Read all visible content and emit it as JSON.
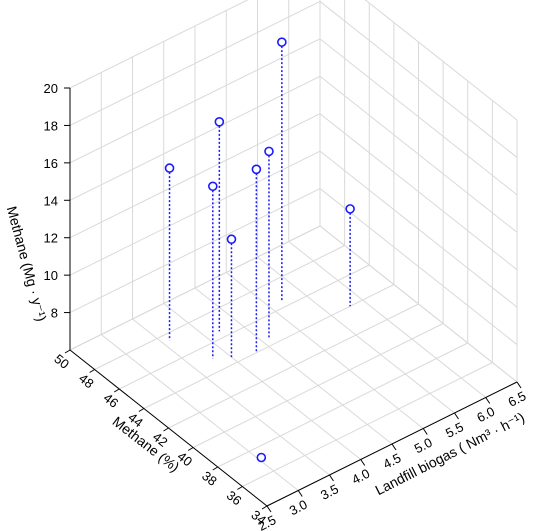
{
  "chart_data": {
    "type": "scatter",
    "subtype": "3d-scatter-with-drop-lines",
    "title": "",
    "xlabel": "Landfill biogas (  Nm³ · h⁻¹)",
    "ylabel": "Methane (%)",
    "zlabel": "Methane  (Mg · y⁻¹)",
    "xlim": [
      2.5,
      6.5
    ],
    "ylim": [
      34,
      50
    ],
    "zlim": [
      6,
      20
    ],
    "x_ticks": [
      "2.5",
      "3.0",
      "3.5",
      "4.0",
      "4.5",
      "5.0",
      "5.5",
      "6.0",
      "6.5"
    ],
    "y_ticks": [
      "34",
      "36",
      "38",
      "40",
      "42",
      "44",
      "46",
      "48",
      "50"
    ],
    "z_ticks": [
      "8",
      "10",
      "12",
      "14",
      "16",
      "18",
      "20"
    ],
    "grid": true,
    "marker_color": "#1a1aff",
    "points": [
      {
        "x": 3.0,
        "y": 37.0,
        "z": 6.2
      },
      {
        "x": 5.8,
        "y": 44.0,
        "z": 11.2
      },
      {
        "x": 3.6,
        "y": 47.5,
        "z": 15.2
      },
      {
        "x": 3.8,
        "y": 45.0,
        "z": 15.2
      },
      {
        "x": 4.0,
        "y": 44.5,
        "z": 12.3
      },
      {
        "x": 4.2,
        "y": 46.5,
        "z": 17.2
      },
      {
        "x": 4.3,
        "y": 44.0,
        "z": 15.8
      },
      {
        "x": 4.6,
        "y": 44.5,
        "z": 16.0
      },
      {
        "x": 5.2,
        "y": 46.5,
        "z": 19.8
      }
    ]
  }
}
